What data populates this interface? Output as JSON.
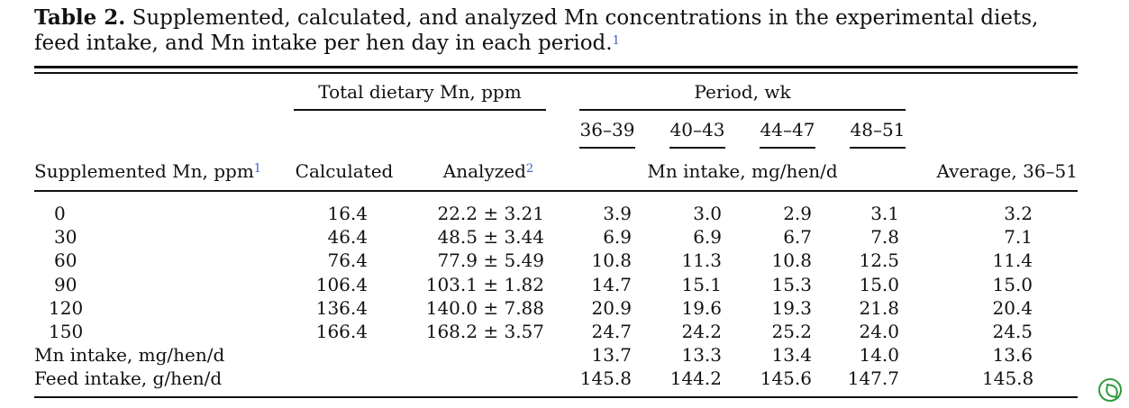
{
  "caption": {
    "label": "Table 2.",
    "text": "Supplemented, calculated, and analyzed Mn concentrations in the experimental diets, feed intake, and Mn intake per hen day in each period.",
    "footnote": "1"
  },
  "header": {
    "group_total": "Total dietary Mn, ppm",
    "group_period": "Period, wk",
    "periods": [
      "36–39",
      "40–43",
      "44–47",
      "48–51"
    ],
    "col_supp": "Supplemented Mn, ppm",
    "col_supp_note": "1",
    "col_calc": "Calculated",
    "col_anal": "Analyzed",
    "col_anal_note": "2",
    "col_intake": "Mn intake, mg/hen/d",
    "col_avg": "Average, 36–51"
  },
  "rows": [
    {
      "supp": "0",
      "calc": "16.4",
      "anal": "22.2 ± 3.21",
      "p1": "3.9",
      "p2": "3.0",
      "p3": "2.9",
      "p4": "3.1",
      "avg": "3.2"
    },
    {
      "supp": "30",
      "calc": "46.4",
      "anal": "48.5 ± 3.44",
      "p1": "6.9",
      "p2": "6.9",
      "p3": "6.7",
      "p4": "7.8",
      "avg": "7.1"
    },
    {
      "supp": "60",
      "calc": "76.4",
      "anal": "77.9 ± 5.49",
      "p1": "10.8",
      "p2": "11.3",
      "p3": "10.8",
      "p4": "12.5",
      "avg": "11.4"
    },
    {
      "supp": "90",
      "calc": "106.4",
      "anal": "103.1 ± 1.82",
      "p1": "14.7",
      "p2": "15.1",
      "p3": "15.3",
      "p4": "15.0",
      "avg": "15.0"
    },
    {
      "supp": "120",
      "calc": "136.4",
      "anal": "140.0 ± 7.88",
      "p1": "20.9",
      "p2": "19.6",
      "p3": "19.3",
      "p4": "21.8",
      "avg": "20.4"
    },
    {
      "supp": "150",
      "calc": "166.4",
      "anal": "168.2 ± 3.57",
      "p1": "24.7",
      "p2": "24.2",
      "p3": "25.2",
      "p4": "24.0",
      "avg": "24.5"
    }
  ],
  "summary": [
    {
      "label": "Mn intake, mg/hen/d",
      "p1": "13.7",
      "p2": "13.3",
      "p3": "13.4",
      "p4": "14.0",
      "avg": "13.6"
    },
    {
      "label": "Feed intake, g/hen/d",
      "p1": "145.8",
      "p2": "144.2",
      "p3": "145.6",
      "p4": "147.7",
      "avg": "145.8"
    }
  ]
}
